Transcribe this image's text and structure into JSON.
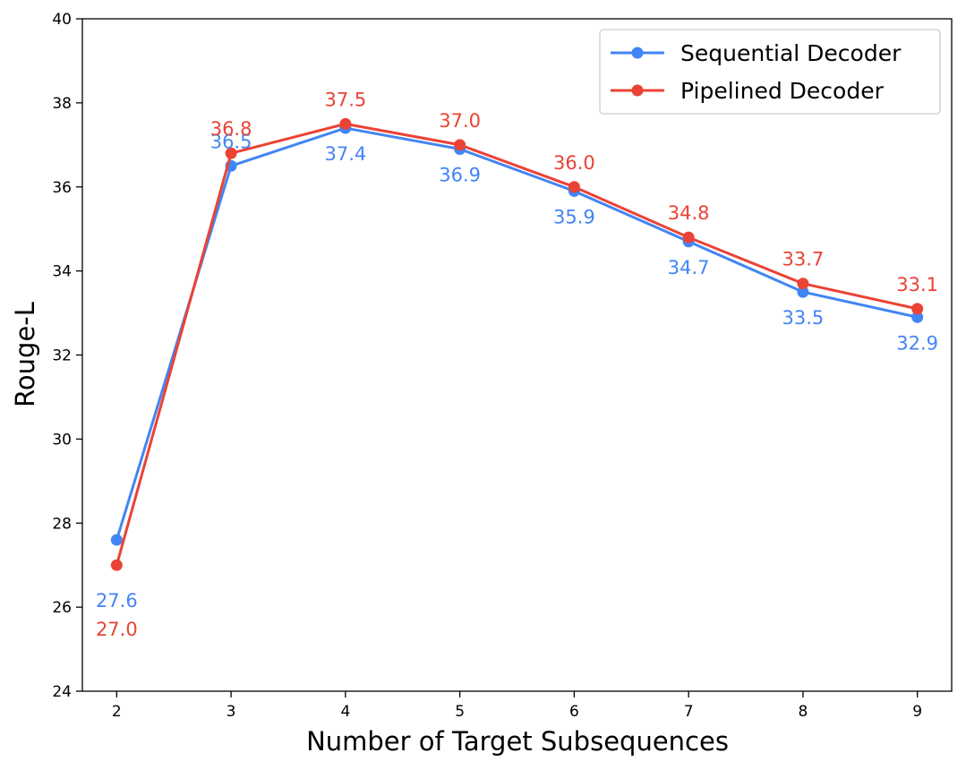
{
  "chart_data": {
    "type": "line",
    "title": "",
    "xlabel": "Number of Target Subsequences",
    "ylabel": "Rouge-L",
    "x": [
      2,
      3,
      4,
      5,
      6,
      7,
      8,
      9
    ],
    "x_tick_labels": [
      "2",
      "3",
      "4",
      "5",
      "6",
      "7",
      "8",
      "9"
    ],
    "xlim": [
      1.7,
      9.3
    ],
    "ylim": [
      24,
      40
    ],
    "y_ticks": [
      24,
      26,
      28,
      30,
      32,
      34,
      36,
      38,
      40
    ],
    "y_tick_labels": [
      "24",
      "26",
      "28",
      "30",
      "32",
      "34",
      "36",
      "38",
      "40"
    ],
    "grid": false,
    "legend_position": "top-right",
    "series": [
      {
        "name": "Sequential Decoder",
        "color": "#4285f4",
        "values": [
          27.6,
          36.5,
          37.4,
          36.9,
          35.9,
          34.7,
          33.5,
          32.9
        ],
        "labels": [
          "27.6",
          "36.5",
          "37.4",
          "36.9",
          "35.9",
          "34.7",
          "33.5",
          "32.9"
        ],
        "label_placement": [
          "below",
          "above",
          "below",
          "below",
          "below",
          "below",
          "below",
          "below"
        ]
      },
      {
        "name": "Pipelined Decoder",
        "color": "#ea4335",
        "values": [
          27.0,
          36.8,
          37.5,
          37.0,
          36.0,
          34.8,
          33.7,
          33.1
        ],
        "labels": [
          "27.0",
          "36.8",
          "37.5",
          "37.0",
          "36.0",
          "34.8",
          "33.7",
          "33.1"
        ],
        "label_placement": [
          "below",
          "above",
          "above",
          "above",
          "above",
          "above",
          "above",
          "above"
        ]
      }
    ]
  }
}
